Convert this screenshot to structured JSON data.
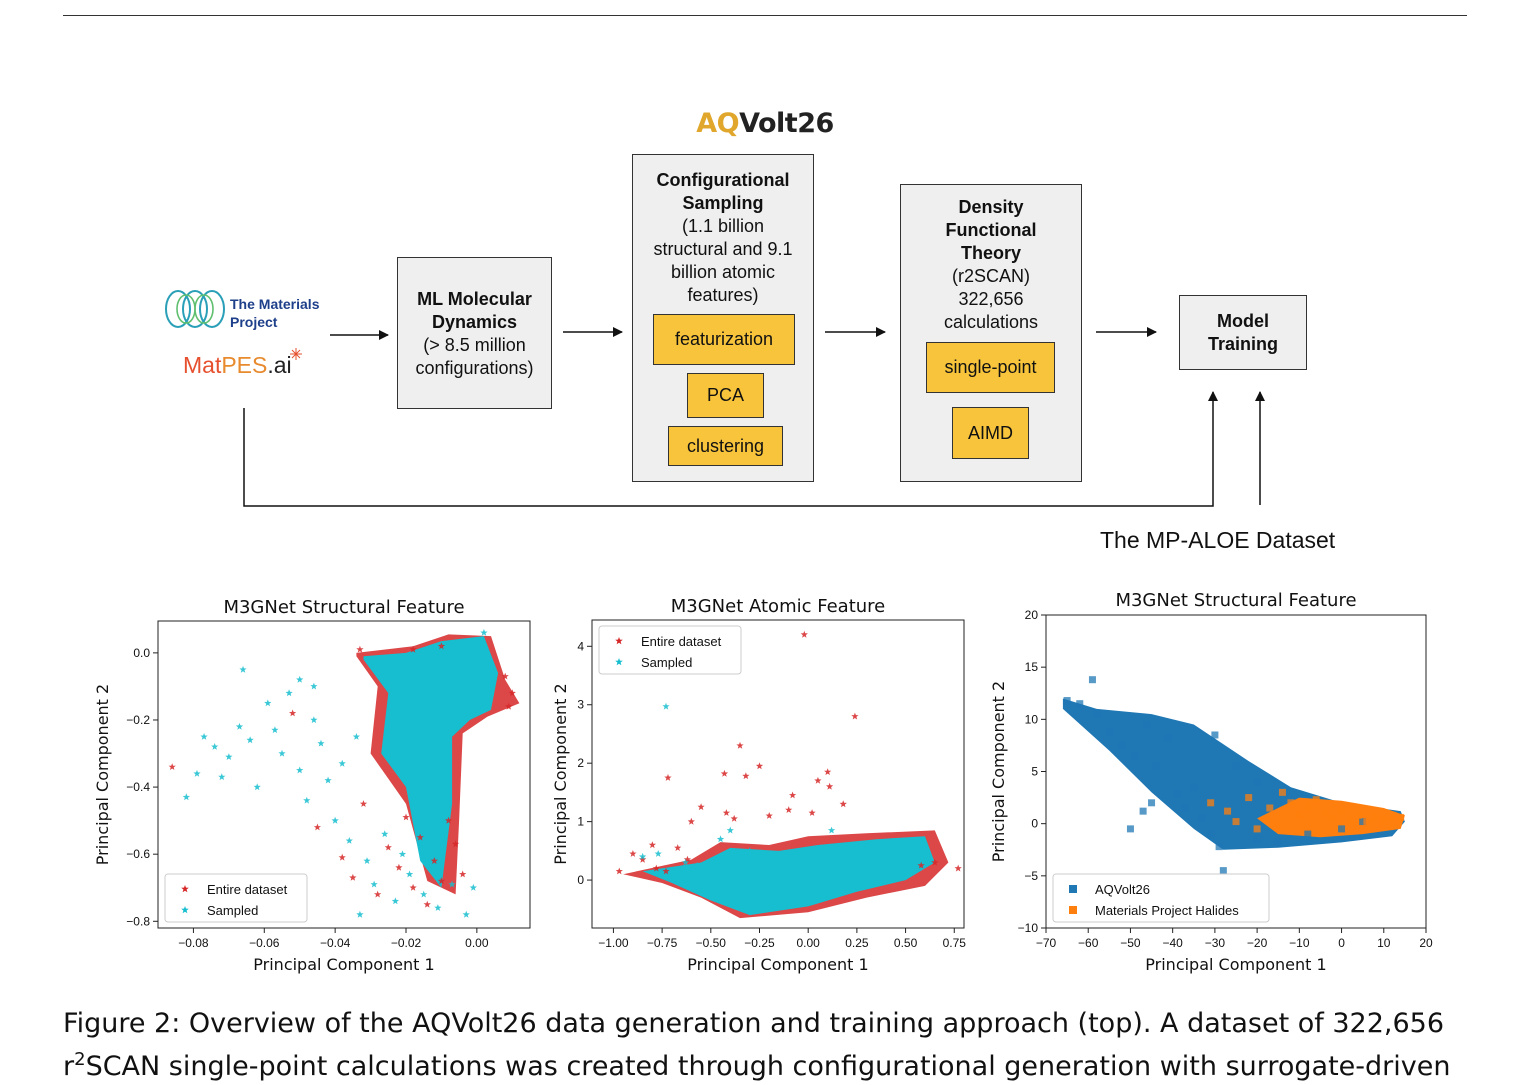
{
  "figure": {
    "title_prefix": "AQ",
    "title_suffix": "Volt26",
    "sources": {
      "mp_line1": "The Materials",
      "mp_line2": "Project",
      "matpes_1": "Mat",
      "matpes_2": "PES",
      "matpes_3": ".ai"
    },
    "md_box": {
      "title1": "ML Molecular",
      "title2": "Dynamics",
      "line1": "(> 8.5 million",
      "line2": "configurations)"
    },
    "sampling_box": {
      "title1": "Configurational",
      "title2": "Sampling",
      "line1": "(1.1 billion",
      "line2": "structural and 9.1",
      "line3": "billion atomic",
      "line4": "features)",
      "steps": [
        "featurization",
        "PCA",
        "clustering"
      ]
    },
    "dft_box": {
      "title1": "Density",
      "title2": "Functional",
      "title3": "Theory",
      "line1": "(r2SCAN)",
      "line2": "322,656",
      "line3": "calculations",
      "steps": [
        "single-point",
        "AIMD"
      ]
    },
    "training_box": {
      "title1": "Model",
      "title2": "Training"
    },
    "dataset_label": "The MP-ALOE Dataset"
  },
  "colors": {
    "accent": "#e0a72c",
    "step_fill": "#f7c43c",
    "box_fill": "#efefef",
    "entire": "#d62728",
    "sampled": "#17becf",
    "aqvolt": "#1f77b4",
    "halides": "#ff7f0e"
  },
  "chart_data": [
    {
      "type": "scatter",
      "title": "M3GNet Structural Feature",
      "xlabel": "Principal Component 1",
      "ylabel": "Principal Component 2",
      "xlim": [
        -0.09,
        0.015
      ],
      "ylim": [
        -0.82,
        0.095
      ],
      "xticks": [
        -0.08,
        -0.06,
        -0.04,
        -0.02,
        0.0
      ],
      "xticklabels": [
        "−0.08",
        "−0.06",
        "−0.04",
        "−0.02",
        "0.00"
      ],
      "yticks": [
        0.0,
        -0.2,
        -0.4,
        -0.6,
        -0.8
      ],
      "yticklabels": [
        "0.0",
        "−0.2",
        "−0.4",
        "−0.6",
        "−0.8"
      ],
      "legend_position": "lower-left",
      "series": [
        {
          "name": "Entire dataset",
          "marker": "star",
          "color": "#d62728",
          "points": [
            [
              -0.086,
              -0.34
            ],
            [
              -0.052,
              -0.18
            ],
            [
              -0.045,
              -0.52
            ],
            [
              -0.038,
              -0.61
            ],
            [
              -0.035,
              -0.67
            ],
            [
              -0.032,
              -0.45
            ],
            [
              -0.028,
              -0.72
            ],
            [
              -0.025,
              -0.58
            ],
            [
              -0.022,
              -0.64
            ],
            [
              -0.02,
              -0.49
            ],
            [
              -0.018,
              -0.7
            ],
            [
              -0.016,
              -0.55
            ],
            [
              -0.014,
              -0.75
            ],
            [
              -0.012,
              -0.62
            ],
            [
              -0.01,
              -0.68
            ],
            [
              -0.008,
              -0.5
            ],
            [
              -0.006,
              -0.57
            ],
            [
              -0.004,
              -0.66
            ],
            [
              0.008,
              -0.07
            ],
            [
              0.01,
              -0.12
            ],
            [
              0.009,
              -0.16
            ],
            [
              -0.033,
              0.01
            ],
            [
              -0.018,
              0.01
            ],
            [
              -0.01,
              0.02
            ]
          ]
        },
        {
          "name": "Sampled",
          "marker": "star",
          "color": "#17becf",
          "points": [
            [
              -0.082,
              -0.43
            ],
            [
              -0.079,
              -0.36
            ],
            [
              -0.077,
              -0.25
            ],
            [
              -0.074,
              -0.28
            ],
            [
              -0.072,
              -0.37
            ],
            [
              -0.07,
              -0.31
            ],
            [
              -0.067,
              -0.22
            ],
            [
              -0.064,
              -0.26
            ],
            [
              -0.062,
              -0.4
            ],
            [
              -0.059,
              -0.15
            ],
            [
              -0.057,
              -0.23
            ],
            [
              -0.055,
              -0.3
            ],
            [
              -0.053,
              -0.12
            ],
            [
              -0.05,
              -0.35
            ],
            [
              -0.048,
              -0.44
            ],
            [
              -0.046,
              -0.2
            ],
            [
              -0.044,
              -0.27
            ],
            [
              -0.042,
              -0.38
            ],
            [
              -0.04,
              -0.5
            ],
            [
              -0.038,
              -0.33
            ],
            [
              -0.036,
              -0.56
            ],
            [
              -0.034,
              -0.25
            ],
            [
              -0.031,
              -0.62
            ],
            [
              -0.029,
              -0.69
            ],
            [
              -0.033,
              -0.78
            ],
            [
              -0.026,
              -0.54
            ],
            [
              -0.023,
              -0.74
            ],
            [
              -0.021,
              -0.6
            ],
            [
              -0.019,
              -0.66
            ],
            [
              -0.015,
              -0.72
            ],
            [
              -0.011,
              -0.76
            ],
            [
              -0.007,
              -0.69
            ],
            [
              -0.003,
              -0.78
            ],
            [
              -0.001,
              -0.7
            ],
            [
              -0.066,
              -0.05
            ],
            [
              -0.05,
              -0.08
            ],
            [
              -0.046,
              -0.1
            ],
            [
              0.002,
              0.06
            ]
          ]
        }
      ]
    },
    {
      "type": "scatter",
      "title": "M3GNet Atomic Feature",
      "xlabel": "Principal Component 1",
      "ylabel": "Principal Component 2",
      "xlim": [
        -1.11,
        0.8
      ],
      "ylim": [
        -0.82,
        4.45
      ],
      "xticks": [
        -1.0,
        -0.75,
        -0.5,
        -0.25,
        0.0,
        0.25,
        0.5,
        0.75
      ],
      "xticklabels": [
        "−1.00",
        "−0.75",
        "−0.50",
        "−0.25",
        "0.00",
        "0.25",
        "0.50",
        "0.75"
      ],
      "yticks": [
        0,
        1,
        2,
        3,
        4
      ],
      "yticklabels": [
        "0",
        "1",
        "2",
        "3",
        "4"
      ],
      "legend_position": "top-left",
      "series": [
        {
          "name": "Entire dataset",
          "marker": "star",
          "color": "#d62728",
          "points": [
            [
              -0.02,
              4.2
            ],
            [
              0.24,
              2.8
            ],
            [
              -0.35,
              2.3
            ],
            [
              -0.72,
              1.75
            ],
            [
              -0.43,
              1.82
            ],
            [
              -0.25,
              1.95
            ],
            [
              -0.32,
              1.78
            ],
            [
              0.1,
              1.85
            ],
            [
              0.05,
              1.7
            ],
            [
              -0.08,
              1.45
            ],
            [
              -0.6,
              1.0
            ],
            [
              -0.55,
              1.25
            ],
            [
              -0.42,
              1.15
            ],
            [
              -0.38,
              1.05
            ],
            [
              -0.2,
              1.1
            ],
            [
              -0.1,
              1.2
            ],
            [
              0.02,
              1.15
            ],
            [
              0.18,
              1.3
            ],
            [
              0.11,
              1.6
            ],
            [
              -0.97,
              0.15
            ],
            [
              -0.85,
              0.35
            ],
            [
              -0.78,
              0.2
            ],
            [
              -0.9,
              0.45
            ],
            [
              -0.67,
              0.55
            ],
            [
              -0.73,
              0.15
            ],
            [
              0.77,
              0.2
            ],
            [
              0.58,
              0.25
            ],
            [
              0.65,
              0.3
            ],
            [
              -0.8,
              0.6
            ],
            [
              -0.62,
              0.35
            ]
          ]
        },
        {
          "name": "Sampled",
          "marker": "star",
          "color": "#17becf",
          "points": [
            [
              -0.73,
              2.97
            ],
            [
              -0.85,
              0.4
            ],
            [
              -0.77,
              0.45
            ],
            [
              -0.63,
              0.3
            ],
            [
              -0.57,
              0.25
            ],
            [
              -0.45,
              0.7
            ],
            [
              -0.4,
              0.85
            ],
            [
              -0.3,
              0.5
            ],
            [
              0.12,
              0.85
            ],
            [
              0.62,
              0.35
            ]
          ]
        }
      ]
    },
    {
      "type": "scatter",
      "title": "M3GNet Structural Feature",
      "xlabel": "Principal Component 1",
      "ylabel": "Principal Component 2",
      "xlim": [
        -70,
        20
      ],
      "ylim": [
        -10,
        20
      ],
      "xticks": [
        -70,
        -60,
        -50,
        -40,
        -30,
        -20,
        -10,
        0,
        10,
        20
      ],
      "xticklabels": [
        "−70",
        "−60",
        "−50",
        "−40",
        "−30",
        "−20",
        "−10",
        "0",
        "10",
        "20"
      ],
      "yticks": [
        20,
        15,
        10,
        5,
        0,
        -5,
        -10
      ],
      "yticklabels": [
        "20",
        "15",
        "10",
        "5",
        "0",
        "−5",
        "−10"
      ],
      "legend_position": "lower-left",
      "series": [
        {
          "name": "AQVolt26",
          "marker": "square",
          "color": "#1f77b4",
          "points": [
            [
              -65,
              11.8
            ],
            [
              -62,
              11.5
            ],
            [
              -59,
              13.8
            ],
            [
              -58,
              10.5
            ],
            [
              -55,
              8.8
            ],
            [
              -52,
              7.5
            ],
            [
              -49,
              6.5
            ],
            [
              -46,
              9.5
            ],
            [
              -44,
              5.5
            ],
            [
              -41,
              8.2
            ],
            [
              -39,
              2.8
            ],
            [
              -37,
              1.5
            ],
            [
              -35,
              3.5
            ],
            [
              -33,
              0.5
            ],
            [
              -31,
              -1.0
            ],
            [
              -29,
              -2.2
            ],
            [
              -47,
              1.2
            ],
            [
              -45,
              2.0
            ],
            [
              -50,
              -0.5
            ],
            [
              -28,
              -4.5
            ],
            [
              -20,
              -1.5
            ],
            [
              -15,
              -1.8
            ],
            [
              -8,
              -1.0
            ],
            [
              0,
              -0.5
            ],
            [
              5,
              0.2
            ],
            [
              -30,
              8.5
            ],
            [
              -25,
              5.5
            ],
            [
              -20,
              4.0
            ]
          ]
        },
        {
          "name": "Materials Project Halides",
          "marker": "square",
          "color": "#ff7f0e",
          "points": [
            [
              -31,
              2.0
            ],
            [
              -27,
              1.2
            ],
            [
              -25,
              0.2
            ],
            [
              -22,
              2.5
            ],
            [
              -20,
              -0.5
            ],
            [
              -17,
              1.5
            ],
            [
              -14,
              3.0
            ],
            [
              -12,
              2.0
            ],
            [
              -10,
              0.8
            ],
            [
              -8,
              1.5
            ],
            [
              -6,
              2.3
            ],
            [
              -4,
              1.0
            ],
            [
              -2,
              0.5
            ],
            [
              0,
              1.2
            ],
            [
              2,
              0.3
            ],
            [
              4,
              0.8
            ],
            [
              6,
              0.2
            ],
            [
              8,
              0.6
            ],
            [
              10,
              0.4
            ],
            [
              12,
              0.5
            ],
            [
              14,
              0.6
            ]
          ]
        }
      ]
    }
  ],
  "caption": {
    "line1_parts": {
      "label": "Figure 2:",
      "text": " Overview of the AQVolt26 data generation and training approach (top).  A dataset of 322,656"
    },
    "line2_prefix": "r",
    "line2_sup": "2",
    "line2_text": "SCAN single-point calculations was created through configurational generation with surrogate-driven"
  }
}
